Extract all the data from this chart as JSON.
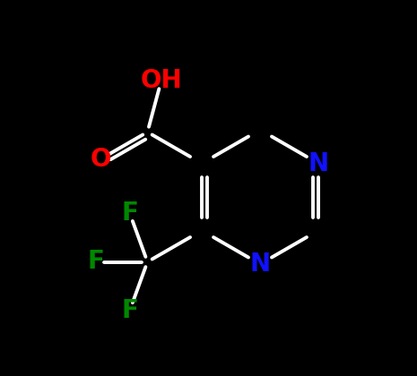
{
  "background_color": "#000000",
  "atom_colors": {
    "C": "#ffffff",
    "N": "#1111ff",
    "O": "#ff0000",
    "F": "#008800",
    "H": "#ffffff"
  },
  "font_size": 20,
  "line_color": "#ffffff",
  "line_width": 2.8,
  "figsize": [
    4.65,
    4.2
  ],
  "dpi": 100,
  "xlim": [
    0,
    9.3
  ],
  "ylim": [
    0,
    8.4
  ]
}
